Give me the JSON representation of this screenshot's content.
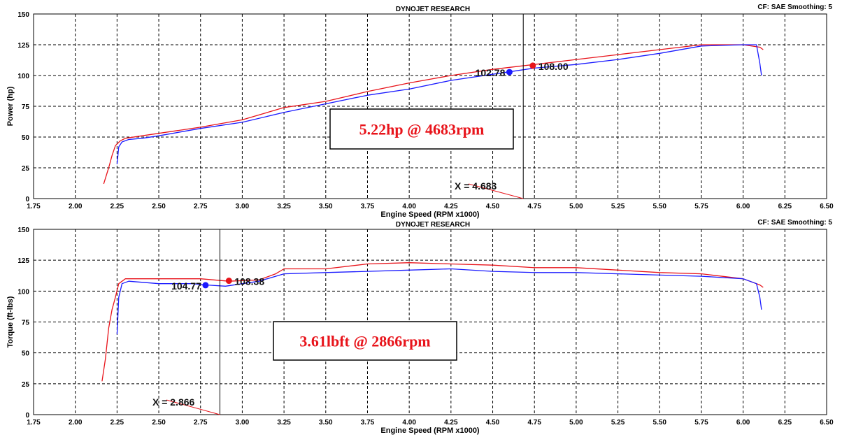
{
  "colors": {
    "red": "#e8141b",
    "blue": "#1a1aff"
  },
  "chart_data": [
    {
      "type": "line",
      "title": "DYNOJET RESEARCH",
      "corner_text": "CF: SAE  Smoothing: 5",
      "xlabel": "Engine Speed (RPM x1000)",
      "ylabel": "Power (hp)",
      "xlim": [
        1.75,
        6.5
      ],
      "ylim": [
        0,
        150
      ],
      "x_ticks": [
        "1.75",
        "2.00",
        "2.25",
        "2.50",
        "2.75",
        "3.00",
        "3.25",
        "3.50",
        "3.75",
        "4.00",
        "4.25",
        "4.50",
        "4.75",
        "5.00",
        "5.25",
        "5.50",
        "5.75",
        "6.00",
        "6.25",
        "6.50"
      ],
      "y_ticks": [
        "0",
        "25",
        "50",
        "75",
        "100",
        "125",
        "150"
      ],
      "grid": true,
      "cursor_x": 4.683,
      "cursor_label": "X = 4.683",
      "annotation_box": "5.22hp @ 4683rpm",
      "series": [
        {
          "color": "red",
          "points": [
            [
              2.17,
              12
            ],
            [
              2.2,
              25
            ],
            [
              2.22,
              35
            ],
            [
              2.24,
              43
            ],
            [
              2.27,
              47
            ],
            [
              2.3,
              49
            ],
            [
              2.4,
              51
            ],
            [
              2.5,
              53
            ],
            [
              2.75,
              58
            ],
            [
              3.0,
              64
            ],
            [
              3.25,
              74
            ],
            [
              3.5,
              79
            ],
            [
              3.75,
              87
            ],
            [
              4.0,
              94
            ],
            [
              4.25,
              100
            ],
            [
              4.5,
              105
            ],
            [
              4.75,
              109
            ],
            [
              5.0,
              113
            ],
            [
              5.25,
              117
            ],
            [
              5.5,
              121
            ],
            [
              5.75,
              125
            ],
            [
              6.0,
              125
            ],
            [
              6.1,
              123
            ],
            [
              6.12,
              121
            ]
          ],
          "marker": {
            "x": 4.74,
            "y": 108.0,
            "label": "108.00"
          }
        },
        {
          "color": "blue",
          "points": [
            [
              2.25,
              28
            ],
            [
              2.26,
              42
            ],
            [
              2.28,
              46
            ],
            [
              2.32,
              48
            ],
            [
              2.4,
              49
            ],
            [
              2.5,
              51
            ],
            [
              2.75,
              57
            ],
            [
              3.0,
              62
            ],
            [
              3.25,
              70
            ],
            [
              3.5,
              77
            ],
            [
              3.75,
              84
            ],
            [
              4.0,
              89
            ],
            [
              4.25,
              96
            ],
            [
              4.5,
              101
            ],
            [
              4.6,
              103
            ],
            [
              4.75,
              106
            ],
            [
              5.0,
              109
            ],
            [
              5.25,
              113
            ],
            [
              5.5,
              118
            ],
            [
              5.75,
              124
            ],
            [
              6.0,
              125
            ],
            [
              6.08,
              125
            ],
            [
              6.1,
              110
            ],
            [
              6.11,
              100
            ]
          ],
          "marker": {
            "x": 4.6,
            "y": 102.78,
            "label": "102.78"
          }
        }
      ]
    },
    {
      "type": "line",
      "title": "DYNOJET RESEARCH",
      "corner_text": "CF: SAE  Smoothing: 5",
      "xlabel": "Engine Speed (RPM x1000)",
      "ylabel": "Torque (ft-lbs)",
      "xlim": [
        1.75,
        6.5
      ],
      "ylim": [
        0,
        150
      ],
      "x_ticks": [
        "1.75",
        "2.00",
        "2.25",
        "2.50",
        "2.75",
        "3.00",
        "3.25",
        "3.50",
        "3.75",
        "4.00",
        "4.25",
        "4.50",
        "4.75",
        "5.00",
        "5.25",
        "5.50",
        "5.75",
        "6.00",
        "6.25",
        "6.50"
      ],
      "y_ticks": [
        "0",
        "25",
        "50",
        "75",
        "100",
        "125",
        "150"
      ],
      "grid": true,
      "cursor_x": 2.866,
      "cursor_label": "X = 2.866",
      "annotation_box": "3.61lbft @ 2866rpm",
      "series": [
        {
          "color": "red",
          "points": [
            [
              2.16,
              27
            ],
            [
              2.18,
              45
            ],
            [
              2.2,
              70
            ],
            [
              2.22,
              85
            ],
            [
              2.24,
              95
            ],
            [
              2.26,
              106
            ],
            [
              2.3,
              110
            ],
            [
              2.5,
              110
            ],
            [
              2.75,
              110
            ],
            [
              2.92,
              108
            ],
            [
              3.1,
              109
            ],
            [
              3.2,
              114
            ],
            [
              3.25,
              118
            ],
            [
              3.5,
              118
            ],
            [
              3.75,
              122
            ],
            [
              4.0,
              123
            ],
            [
              4.25,
              122
            ],
            [
              4.5,
              121
            ],
            [
              4.75,
              119
            ],
            [
              5.0,
              119
            ],
            [
              5.25,
              117
            ],
            [
              5.5,
              115
            ],
            [
              5.75,
              114
            ],
            [
              6.0,
              110
            ],
            [
              6.1,
              105
            ],
            [
              6.12,
              103
            ]
          ],
          "marker": {
            "x": 2.92,
            "y": 108.38,
            "label": "108.38"
          }
        },
        {
          "color": "blue",
          "points": [
            [
              2.25,
              65
            ],
            [
              2.26,
              95
            ],
            [
              2.28,
              106
            ],
            [
              2.32,
              108
            ],
            [
              2.5,
              106
            ],
            [
              2.7,
              106
            ],
            [
              2.78,
              105
            ],
            [
              2.9,
              104
            ],
            [
              3.1,
              108
            ],
            [
              3.25,
              114
            ],
            [
              3.5,
              115
            ],
            [
              3.75,
              116
            ],
            [
              4.0,
              117
            ],
            [
              4.25,
              118
            ],
            [
              4.5,
              116
            ],
            [
              4.75,
              115
            ],
            [
              5.0,
              115
            ],
            [
              5.25,
              114
            ],
            [
              5.5,
              113
            ],
            [
              5.75,
              112
            ],
            [
              6.0,
              110
            ],
            [
              6.08,
              106
            ],
            [
              6.1,
              95
            ],
            [
              6.11,
              85
            ]
          ],
          "marker": {
            "x": 2.78,
            "y": 104.77,
            "label": "104.77"
          }
        }
      ]
    }
  ]
}
